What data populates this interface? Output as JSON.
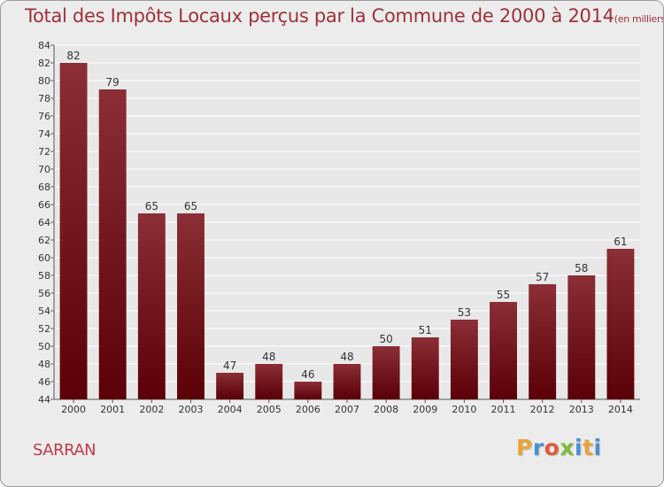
{
  "header": {
    "title": "Total des Impôts Locaux perçus par la Commune de 2000 à 2014",
    "unit": "(en milliers d'€)"
  },
  "footer": {
    "commune": "SARRAN",
    "logo_letters": [
      "P",
      "r",
      "o",
      "x",
      "i",
      "t",
      "i"
    ],
    "logo_colors": [
      "#e8a33c",
      "#4a8fd4",
      "#e05a3a",
      "#7dbb3a",
      "#4a8fd4",
      "#e8a33c",
      "#4a8fd4"
    ]
  },
  "colors": {
    "bar_top": "#8b2e36",
    "bar_bottom": "#5a0006",
    "title": "#a0303a",
    "background": "#ececec",
    "grid": "#ffffff"
  },
  "chart_data": {
    "type": "bar",
    "categories": [
      "2000",
      "2001",
      "2002",
      "2003",
      "2004",
      "2005",
      "2006",
      "2007",
      "2008",
      "2009",
      "2010",
      "2011",
      "2012",
      "2013",
      "2014"
    ],
    "values": [
      82,
      79,
      65,
      65,
      47,
      48,
      46,
      48,
      50,
      51,
      53,
      55,
      57,
      58,
      61
    ],
    "title": "Total des Impôts Locaux perçus par la Commune de 2000 à 2014",
    "ylim": [
      44,
      84
    ],
    "yticks": [
      44,
      46,
      48,
      50,
      52,
      54,
      56,
      58,
      60,
      62,
      64,
      66,
      68,
      70,
      72,
      74,
      76,
      78,
      80,
      82,
      84
    ],
    "grid": true,
    "legend": "none"
  }
}
